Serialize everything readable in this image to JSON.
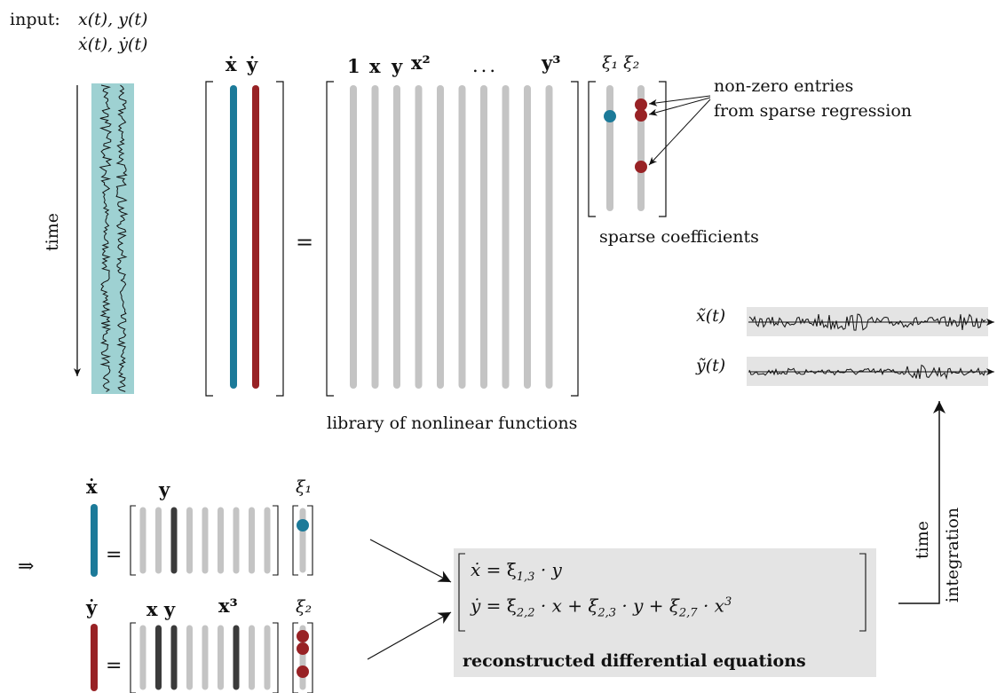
{
  "colors": {
    "blue": "#1c7a99",
    "red": "#982225",
    "gray": "#c4c4c4",
    "dark": "#3b3b3b",
    "teal_bg": "#9ed1d2",
    "panel_bg": "#e4e4e4"
  },
  "input": {
    "label": "input:",
    "line1": "x(t), y(t)",
    "line2": "ẋ(t), ẏ(t)"
  },
  "time_label": "time",
  "derivatives_header": "ẋ ẏ",
  "equals": "=",
  "library": {
    "header_terms": [
      "1",
      "x",
      "y",
      "x²"
    ],
    "ellipsis": "...",
    "last_term": "y³",
    "caption": "library of nonlinear functions"
  },
  "coefficients": {
    "header": "ξ₁ ξ₂",
    "caption": "sparse coefficients"
  },
  "annotation": {
    "line1": "non-zero entries",
    "line2": "from sparse regression"
  },
  "signals": {
    "x_label": "x̃(t)",
    "y_label": "ỹ(t)"
  },
  "integration": {
    "line1": "time",
    "line2": "integration"
  },
  "implies": "⇒",
  "row_x": {
    "lhs": "ẋ",
    "term": "y",
    "coef": "ξ₁"
  },
  "row_y": {
    "lhs": "ẏ",
    "terms": "x y",
    "cube": "x³",
    "coef": "ξ₂"
  },
  "equations": {
    "eq1": "ẋ̇ = ξ1,3 · y",
    "eq1_lhs": "ẋ",
    "eq1_rhs": "= ξ",
    "eq1_sub": "1,3",
    "eq1_tail": "· y",
    "eq2_lhs": "ẏ",
    "eq2_rhs": "= ξ",
    "eq2_sub1": "2,2",
    "eq2_mid1": "· x + ξ",
    "eq2_sub2": "2,3",
    "eq2_mid2": "· y + ξ",
    "eq2_sub3": "2,7",
    "eq2_tail": "· x",
    "eq2_pow": "3",
    "caption": "reconstructed differential equations"
  }
}
